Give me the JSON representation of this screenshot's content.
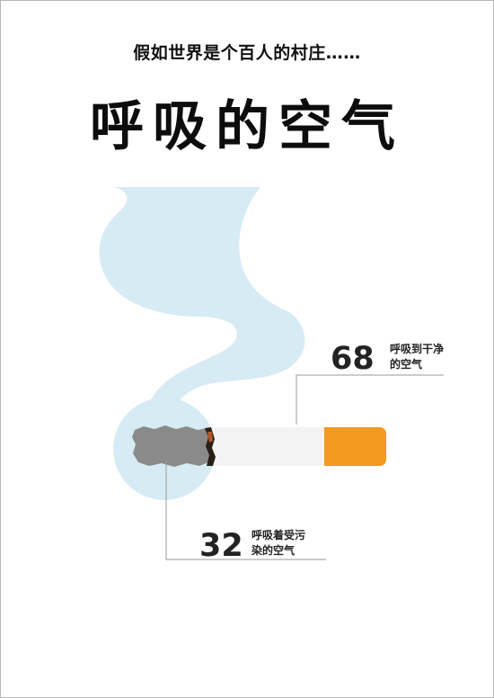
{
  "page": {
    "subtitle": "假如世界是个百人的村庄……",
    "title": "呼吸的空气"
  },
  "chart_data": {
    "type": "pictograph",
    "series": [
      {
        "value": 68,
        "label_line1": "呼吸到干净",
        "label_line2": "的空气"
      },
      {
        "value": 32,
        "label_line1": "呼吸着受污",
        "label_line2": "染的空气"
      }
    ],
    "total": 100
  },
  "colors": {
    "smoke": "#d7ebf4",
    "filter": "#f49a1f",
    "ash": "#8a8a8a",
    "paper": "#f3f3f3",
    "leader_line": "#9a9a9a"
  }
}
